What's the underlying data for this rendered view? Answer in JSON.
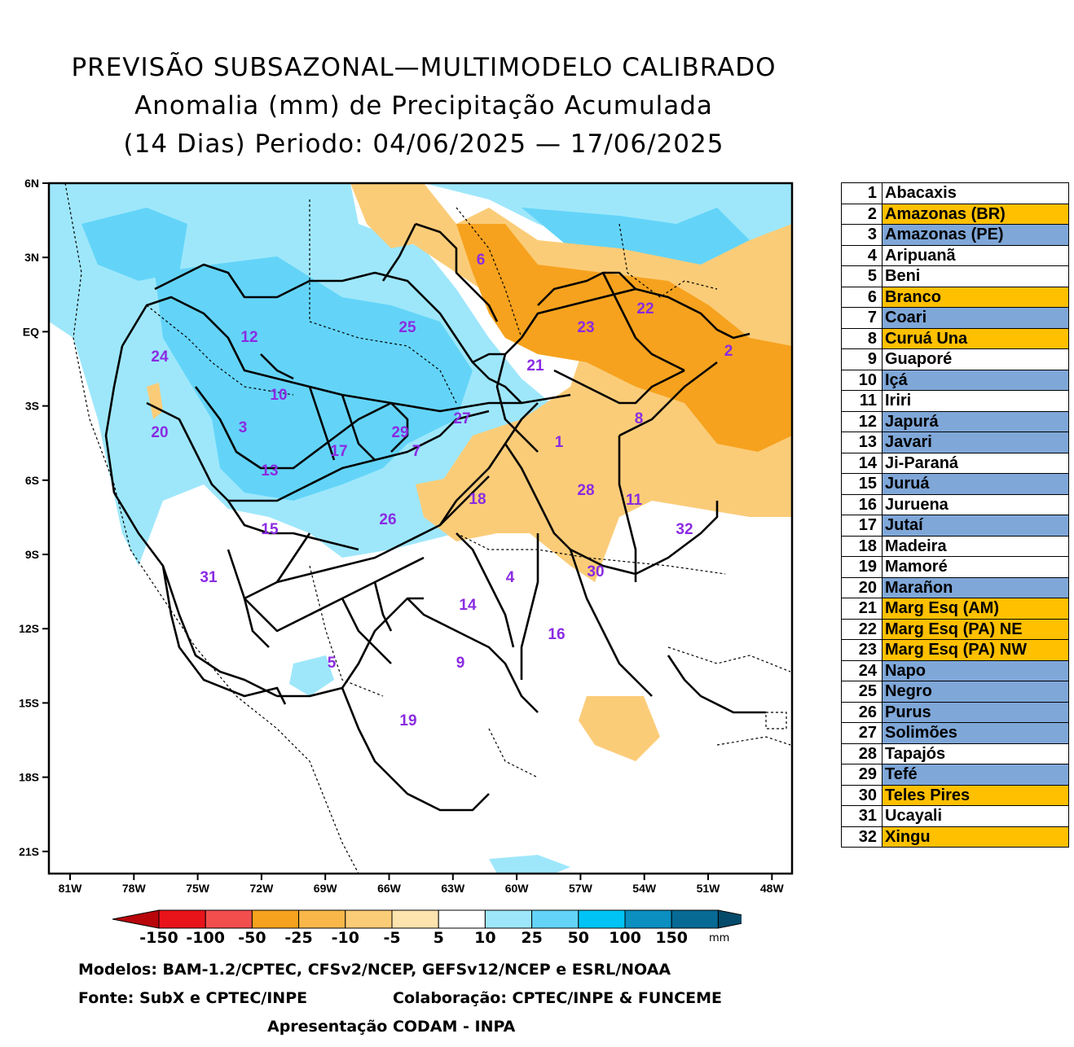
{
  "title": {
    "line1": "PREVISÃO SUBSAZONAL—MULTIMODELO CALIBRADO",
    "line2": "Anomalia (mm) de Precipitação Acumulada",
    "line3": "(14 Dias) Periodo: 04/06/2025 — 17/06/2025"
  },
  "axes": {
    "lat_labels": [
      "6N",
      "3N",
      "EQ",
      "3S",
      "6S",
      "9S",
      "12S",
      "15S",
      "18S",
      "21S"
    ],
    "lon_labels": [
      "81W",
      "78W",
      "75W",
      "72W",
      "69W",
      "66W",
      "63W",
      "60W",
      "57W",
      "54W",
      "51W",
      "48W"
    ]
  },
  "basins_on_map": [
    "1",
    "2",
    "3",
    "4",
    "5",
    "6",
    "7",
    "8",
    "9",
    "10",
    "11",
    "12",
    "13",
    "14",
    "15",
    "16",
    "17",
    "18",
    "19",
    "20",
    "21",
    "22",
    "23",
    "24",
    "25",
    "26",
    "27",
    "28",
    "29",
    "30",
    "31",
    "32"
  ],
  "legend": [
    {
      "num": "1",
      "name": "Abacaxis",
      "color": "#ffffff"
    },
    {
      "num": "2",
      "name": "Amazonas (BR)",
      "color": "#ffc000"
    },
    {
      "num": "3",
      "name": "Amazonas (PE)",
      "color": "#7fa7d8"
    },
    {
      "num": "4",
      "name": "Aripuanã",
      "color": "#ffffff"
    },
    {
      "num": "5",
      "name": "Beni",
      "color": "#ffffff"
    },
    {
      "num": "6",
      "name": "Branco",
      "color": "#ffc000"
    },
    {
      "num": "7",
      "name": "Coari",
      "color": "#7fa7d8"
    },
    {
      "num": "8",
      "name": "Curuá Una",
      "color": "#ffc000"
    },
    {
      "num": "9",
      "name": "Guaporé",
      "color": "#ffffff"
    },
    {
      "num": "10",
      "name": "Içá",
      "color": "#7fa7d8"
    },
    {
      "num": "11",
      "name": "Iriri",
      "color": "#ffffff"
    },
    {
      "num": "12",
      "name": "Japurá",
      "color": "#7fa7d8"
    },
    {
      "num": "13",
      "name": "Javari",
      "color": "#7fa7d8"
    },
    {
      "num": "14",
      "name": "Ji-Paraná",
      "color": "#ffffff"
    },
    {
      "num": "15",
      "name": "Juruá",
      "color": "#7fa7d8"
    },
    {
      "num": "16",
      "name": "Juruena",
      "color": "#ffffff"
    },
    {
      "num": "17",
      "name": "Jutaí",
      "color": "#7fa7d8"
    },
    {
      "num": "18",
      "name": "Madeira",
      "color": "#ffffff"
    },
    {
      "num": "19",
      "name": "Mamoré",
      "color": "#ffffff"
    },
    {
      "num": "20",
      "name": "Marañon",
      "color": "#7fa7d8"
    },
    {
      "num": "21",
      "name": "Marg Esq (AM)",
      "color": "#ffc000"
    },
    {
      "num": "22",
      "name": "Marg Esq (PA) NE",
      "color": "#ffc000"
    },
    {
      "num": "23",
      "name": "Marg Esq (PA) NW",
      "color": "#ffc000"
    },
    {
      "num": "24",
      "name": "Napo",
      "color": "#7fa7d8"
    },
    {
      "num": "25",
      "name": "Negro",
      "color": "#7fa7d8"
    },
    {
      "num": "26",
      "name": "Purus",
      "color": "#7fa7d8"
    },
    {
      "num": "27",
      "name": "Solimões",
      "color": "#7fa7d8"
    },
    {
      "num": "28",
      "name": "Tapajós",
      "color": "#ffffff"
    },
    {
      "num": "29",
      "name": "Tefé",
      "color": "#7fa7d8"
    },
    {
      "num": "30",
      "name": "Teles Pires",
      "color": "#ffc000"
    },
    {
      "num": "31",
      "name": "Ucayali",
      "color": "#ffffff"
    },
    {
      "num": "32",
      "name": "Xingu",
      "color": "#ffc000"
    }
  ],
  "colorbar": {
    "labels": [
      "-150",
      "-100",
      "-50",
      "-25",
      "-10",
      "-5",
      "5",
      "10",
      "25",
      "50",
      "100",
      "150"
    ],
    "unit": "mm",
    "colors": [
      "#b8060b",
      "#e8141a",
      "#f24e4e",
      "#f6a21e",
      "#f9b74a",
      "#fbcc78",
      "#fde3ae",
      "#ffffff",
      "#9ee7fb",
      "#63d4f8",
      "#00c3f5",
      "#0a8fc0",
      "#066a94",
      "#044a6a"
    ]
  },
  "credits": {
    "line1": "Modelos: BAM-1.2/CPTEC, CFSv2/NCEP, GEFSv12/NCEP e ESRL/NOAA",
    "line2a": "Fonte: SubX e CPTEC/INPE",
    "line2b": "Colaboração: CPTEC/INPE & FUNCEME",
    "line3": "Apresentação CODAM - INPA"
  }
}
